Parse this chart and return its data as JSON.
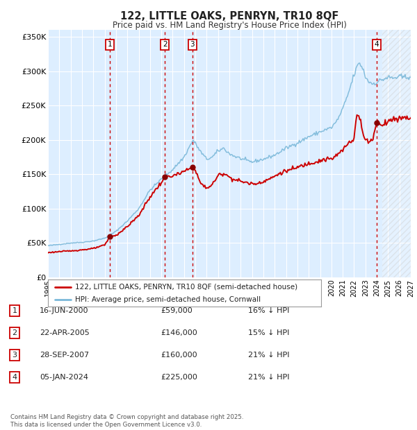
{
  "title": "122, LITTLE OAKS, PENRYN, TR10 8QF",
  "subtitle": "Price paid vs. HM Land Registry's House Price Index (HPI)",
  "legend_line1": "122, LITTLE OAKS, PENRYN, TR10 8QF (semi-detached house)",
  "legend_line2": "HPI: Average price, semi-detached house, Cornwall",
  "footnote": "Contains HM Land Registry data © Crown copyright and database right 2025.\nThis data is licensed under the Open Government Licence v3.0.",
  "transactions": [
    {
      "num": 1,
      "date": "16-JUN-2000",
      "price": 59000,
      "hpi_pct": "16% ↓ HPI",
      "year_x": 2000.46
    },
    {
      "num": 2,
      "date": "22-APR-2005",
      "price": 146000,
      "hpi_pct": "15% ↓ HPI",
      "year_x": 2005.31
    },
    {
      "num": 3,
      "date": "28-SEP-2007",
      "price": 160000,
      "hpi_pct": "21% ↓ HPI",
      "year_x": 2007.74
    },
    {
      "num": 4,
      "date": "05-JAN-2024",
      "price": 225000,
      "hpi_pct": "21% ↓ HPI",
      "year_x": 2024.01
    }
  ],
  "hpi_color": "#7ab8d9",
  "price_color": "#cc0000",
  "fig_bg_color": "#ffffff",
  "plot_bg_color": "#ddeeff",
  "grid_color": "#ffffff",
  "ylim": [
    0,
    360000
  ],
  "xlim_start": 1995,
  "xlim_end": 2027,
  "yticks": [
    0,
    50000,
    100000,
    150000,
    200000,
    250000,
    300000,
    350000
  ],
  "ytick_labels": [
    "£0",
    "£50K",
    "£100K",
    "£150K",
    "£200K",
    "£250K",
    "£300K",
    "£350K"
  ],
  "xticks": [
    1995,
    1996,
    1997,
    1998,
    1999,
    2000,
    2001,
    2002,
    2003,
    2004,
    2005,
    2006,
    2007,
    2008,
    2009,
    2010,
    2011,
    2012,
    2013,
    2014,
    2015,
    2016,
    2017,
    2018,
    2019,
    2020,
    2021,
    2022,
    2023,
    2024,
    2025,
    2026,
    2027
  ],
  "hatch_start": 2024.5
}
